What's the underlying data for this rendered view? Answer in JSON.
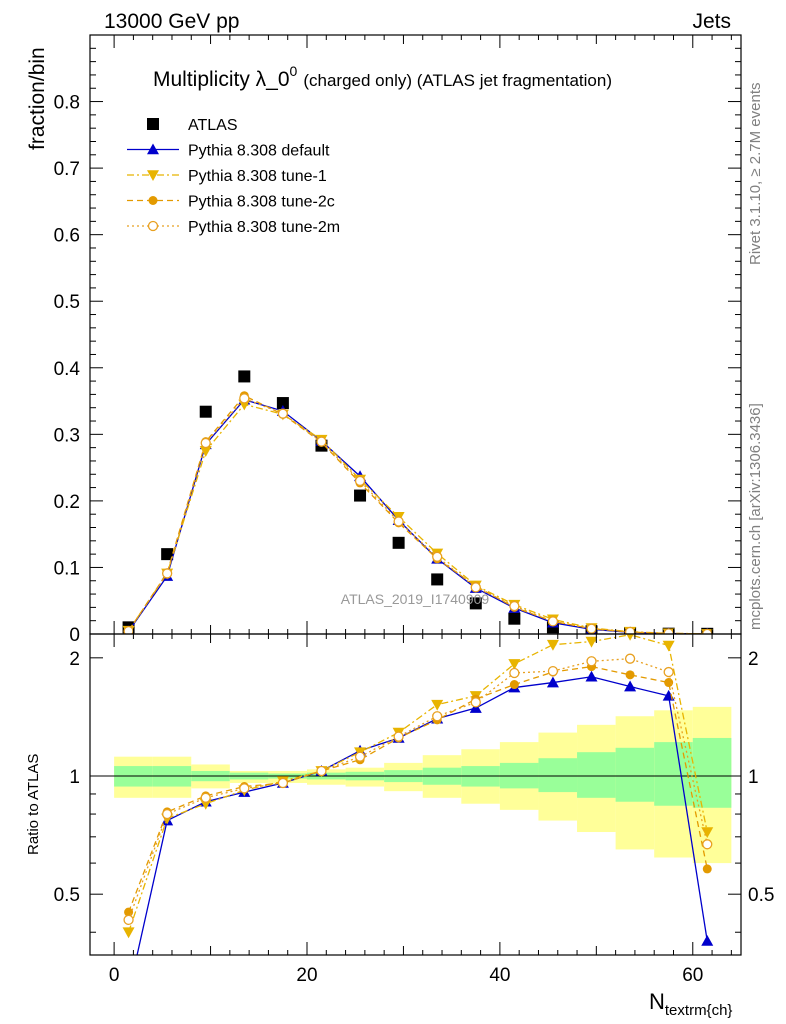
{
  "header": {
    "left": "13000 GeV pp",
    "right": "Jets"
  },
  "side_labels": {
    "rivet": "Rivet 3.1.10, ≥ 2.7M events",
    "mcplots": "mcplots.cern.ch [arXiv:1306.3436]"
  },
  "watermark": "ATLAS_2019_I1740909",
  "chart_data": [
    {
      "type": "scatter",
      "panel": "main",
      "title_main": "Multiplicity λ_0",
      "title_sup": "0",
      "title_sub": "(charged only) (ATLAS jet fragmentation)",
      "ylabel": "fraction/bin",
      "xlabel_main": "N",
      "xlabel_sub": "textrm{ch}",
      "xlim": [
        -2.5,
        65
      ],
      "ylim": [
        0,
        0.9
      ],
      "x_ticks": [
        0,
        20,
        40,
        60
      ],
      "y_ticks": [
        0,
        0.1,
        0.2,
        0.3,
        0.4,
        0.5,
        0.6,
        0.7,
        0.8
      ],
      "y_tick_labels": [
        "0",
        "0.1",
        "0.2",
        "0.3",
        "0.4",
        "0.5",
        "0.6",
        "0.7",
        "0.8"
      ],
      "x": [
        1.5,
        5.5,
        9.5,
        13.5,
        17.5,
        21.5,
        25.5,
        29.5,
        33.5,
        37.5,
        41.5,
        45.5,
        49.5,
        53.5,
        57.5,
        61.5
      ],
      "legend_placement": "top-left",
      "series": [
        {
          "name": "ATLAS",
          "color": "#000000",
          "marker": "square",
          "line": "none",
          "values": [
            0.01,
            0.12,
            0.334,
            0.387,
            0.347,
            0.283,
            0.208,
            0.137,
            0.082,
            0.046,
            0.023,
            0.01,
            0.004,
            0.0015,
            0.0005,
            0.0003
          ]
        },
        {
          "name": "Pythia 8.308 default",
          "color": "#0000cc",
          "marker": "triangle-up",
          "line": "solid",
          "values": [
            0.004,
            0.087,
            0.285,
            0.352,
            0.335,
            0.29,
            0.237,
            0.171,
            0.113,
            0.069,
            0.039,
            0.017,
            0.007,
            0.0025,
            0.0008,
            0.0001
          ]
        },
        {
          "name": "Pythia 8.308 tune-1",
          "color": "#e8b400",
          "marker": "triangle-down",
          "line": "dashdot",
          "values": [
            0.005,
            0.091,
            0.275,
            0.345,
            0.33,
            0.292,
            0.232,
            0.176,
            0.121,
            0.073,
            0.044,
            0.022,
            0.009,
            0.0034,
            0.0011,
            0.0002
          ]
        },
        {
          "name": "Pythia 8.308 tune-2c",
          "color": "#e39a00",
          "marker": "circle",
          "line": "dashed",
          "values": [
            0.0045,
            0.092,
            0.289,
            0.358,
            0.33,
            0.288,
            0.227,
            0.167,
            0.113,
            0.072,
            0.04,
            0.019,
            0.008,
            0.0028,
            0.0009,
            0.0002
          ]
        },
        {
          "name": "Pythia 8.308 tune-2m",
          "color": "#e8a020",
          "marker": "circle-open",
          "line": "dotted",
          "values": [
            0.0043,
            0.091,
            0.287,
            0.354,
            0.331,
            0.289,
            0.23,
            0.169,
            0.116,
            0.07,
            0.042,
            0.019,
            0.008,
            0.003,
            0.0009,
            0.0002
          ]
        }
      ]
    },
    {
      "type": "scatter",
      "panel": "ratio",
      "ylabel": "Ratio to ATLAS",
      "xlim": [
        -2.5,
        65
      ],
      "ylim": [
        0.35,
        2.3
      ],
      "y_ticks": [
        0.5,
        1,
        2
      ],
      "y_tick_labels": [
        "0.5",
        "1",
        "2"
      ],
      "x": [
        1.5,
        5.5,
        9.5,
        13.5,
        17.5,
        21.5,
        25.5,
        29.5,
        33.5,
        37.5,
        41.5,
        45.5,
        49.5,
        53.5,
        57.5,
        61.5
      ],
      "bands": {
        "edges": [
          0,
          4,
          8,
          12,
          16,
          20,
          24,
          28,
          32,
          36,
          40,
          44,
          48,
          52,
          56,
          60,
          64
        ],
        "inner": [
          [
            0.94,
            1.06
          ],
          [
            0.94,
            1.06
          ],
          [
            0.97,
            1.03
          ],
          [
            0.98,
            1.02
          ],
          [
            0.985,
            1.015
          ],
          [
            0.98,
            1.02
          ],
          [
            0.975,
            1.025
          ],
          [
            0.965,
            1.035
          ],
          [
            0.95,
            1.05
          ],
          [
            0.94,
            1.06
          ],
          [
            0.93,
            1.08
          ],
          [
            0.91,
            1.11
          ],
          [
            0.88,
            1.15
          ],
          [
            0.86,
            1.18
          ],
          [
            0.84,
            1.22
          ],
          [
            0.83,
            1.25
          ]
        ],
        "outer": [
          [
            0.88,
            1.12
          ],
          [
            0.88,
            1.12
          ],
          [
            0.93,
            1.07
          ],
          [
            0.96,
            1.03
          ],
          [
            0.96,
            1.03
          ],
          [
            0.95,
            1.04
          ],
          [
            0.94,
            1.05
          ],
          [
            0.915,
            1.08
          ],
          [
            0.88,
            1.13
          ],
          [
            0.85,
            1.17
          ],
          [
            0.82,
            1.22
          ],
          [
            0.77,
            1.29
          ],
          [
            0.72,
            1.35
          ],
          [
            0.65,
            1.42
          ],
          [
            0.62,
            1.47
          ],
          [
            0.6,
            1.5
          ]
        ]
      },
      "series": [
        {
          "name": "Pythia 8.308 default",
          "values": [
            0.28,
            0.77,
            0.86,
            0.91,
            0.96,
            1.03,
            1.16,
            1.25,
            1.4,
            1.49,
            1.68,
            1.73,
            1.79,
            1.69,
            1.6,
            0.38
          ]
        },
        {
          "name": "Pythia 8.308 tune-1",
          "values": [
            0.4,
            0.78,
            0.85,
            0.92,
            0.97,
            1.03,
            1.15,
            1.29,
            1.52,
            1.6,
            1.93,
            2.16,
            2.2,
            2.29,
            2.15,
            0.72
          ]
        },
        {
          "name": "Pythia 8.308 tune-2c",
          "values": [
            0.45,
            0.81,
            0.89,
            0.94,
            0.96,
            1.03,
            1.1,
            1.25,
            1.39,
            1.57,
            1.71,
            1.84,
            1.9,
            1.81,
            1.73,
            0.58
          ]
        },
        {
          "name": "Pythia 8.308 tune-2m",
          "values": [
            0.43,
            0.8,
            0.88,
            0.93,
            0.96,
            1.03,
            1.12,
            1.26,
            1.42,
            1.54,
            1.83,
            1.85,
            1.96,
            1.99,
            1.84,
            0.67
          ]
        }
      ]
    }
  ]
}
